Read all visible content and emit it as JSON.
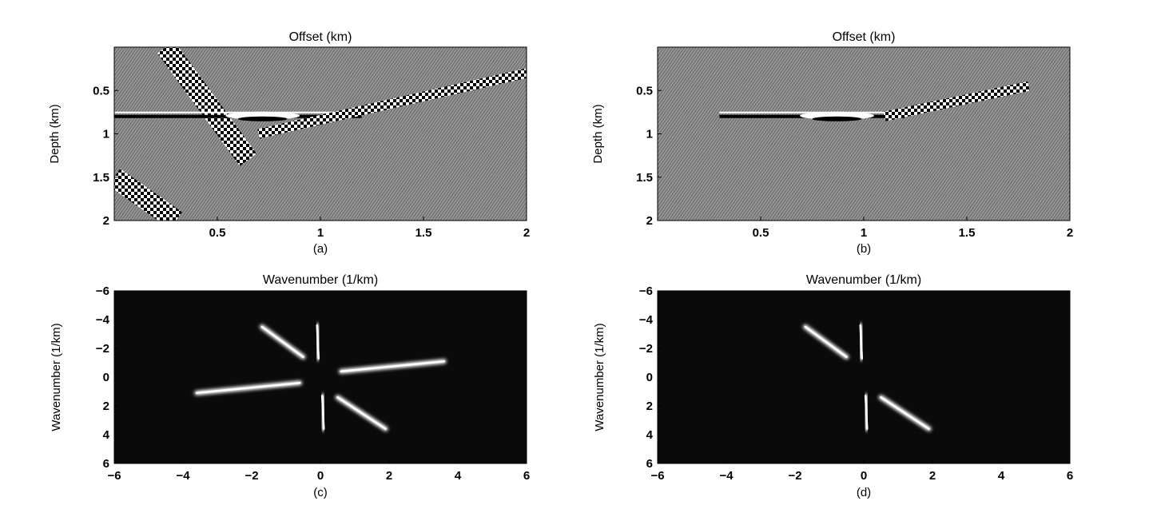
{
  "panels": [
    {
      "id": "a",
      "title": "Offset (km)",
      "ylabel": "Depth (km)",
      "caption": "(a)",
      "xticks": [
        "0.5",
        "1",
        "1.5",
        "2"
      ],
      "yticks": [
        "0.5",
        "1",
        "1.5",
        "2"
      ],
      "xlim": [
        0,
        2
      ],
      "ylim": [
        0,
        2
      ],
      "style": "seismic-gray",
      "background_color": "#8a8a8a",
      "events": [
        {
          "type": "steep-dip",
          "x": [
            0.25,
            0.65
          ],
          "depth": [
            0,
            1.3
          ]
        },
        {
          "type": "horizontal-reflector",
          "x": [
            0,
            1.2
          ],
          "depth": [
            0.8,
            0.8
          ]
        },
        {
          "type": "gentle-dip",
          "x": [
            0.7,
            2.0
          ],
          "depth": [
            1.0,
            0.3
          ]
        },
        {
          "type": "steep-dip",
          "x": [
            0.0,
            0.3
          ],
          "depth": [
            1.5,
            2.0
          ]
        }
      ]
    },
    {
      "id": "b",
      "title": "Offset (km)",
      "ylabel": "Depth (km)",
      "caption": "(b)",
      "xticks": [
        "0.5",
        "1",
        "1.5",
        "2"
      ],
      "yticks": [
        "0.5",
        "1",
        "1.5",
        "2"
      ],
      "xlim": [
        0,
        2
      ],
      "ylim": [
        0,
        2
      ],
      "style": "seismic-gray",
      "background_color": "#8a8a8a",
      "events": [
        {
          "type": "horizontal-reflector",
          "x": [
            0.3,
            1.2
          ],
          "depth": [
            0.8,
            0.8
          ]
        },
        {
          "type": "gentle-dip",
          "x": [
            1.1,
            1.8
          ],
          "depth": [
            0.8,
            0.45
          ]
        }
      ]
    },
    {
      "id": "c",
      "title": "Wavenumber (1/km)",
      "ylabel": "Wavenumber (1/km)",
      "caption": "(c)",
      "xticks": [
        "-6",
        "-4",
        "-2",
        "0",
        "2",
        "4",
        "6"
      ],
      "yticks": [
        "-6",
        "-4",
        "-2",
        "0",
        "2",
        "4",
        "6"
      ],
      "xlim": [
        -6,
        6
      ],
      "ylim": [
        -6,
        6
      ],
      "style": "spectrum",
      "background_color": "#0a0a0a",
      "streaks": [
        {
          "from": [
            -1.7,
            -3.5
          ],
          "to": [
            -0.5,
            -1.4
          ]
        },
        {
          "from": [
            -0.1,
            -3.6
          ],
          "to": [
            -0.05,
            -1.3
          ]
        },
        {
          "from": [
            0.6,
            -0.4
          ],
          "to": [
            3.6,
            -1.1
          ]
        },
        {
          "from": [
            -3.6,
            1.1
          ],
          "to": [
            -0.6,
            0.4
          ]
        },
        {
          "from": [
            0.05,
            1.3
          ],
          "to": [
            0.1,
            3.6
          ]
        },
        {
          "from": [
            0.5,
            1.4
          ],
          "to": [
            1.9,
            3.6
          ]
        }
      ]
    },
    {
      "id": "d",
      "title": "Wavenumber (1/km)",
      "ylabel": "Wavenumber (1/km)",
      "caption": "(d)",
      "xticks": [
        "-6",
        "-4",
        "-2",
        "0",
        "2",
        "4",
        "6"
      ],
      "yticks": [
        "-6",
        "-4",
        "-2",
        "0",
        "2",
        "4",
        "6"
      ],
      "xlim": [
        -6,
        6
      ],
      "ylim": [
        -6,
        6
      ],
      "style": "spectrum",
      "background_color": "#0a0a0a",
      "streaks": [
        {
          "from": [
            -1.7,
            -3.5
          ],
          "to": [
            -0.5,
            -1.4
          ]
        },
        {
          "from": [
            -0.1,
            -3.6
          ],
          "to": [
            -0.05,
            -1.3
          ]
        },
        {
          "from": [
            0.05,
            1.3
          ],
          "to": [
            0.1,
            3.6
          ]
        },
        {
          "from": [
            0.5,
            1.4
          ],
          "to": [
            1.9,
            3.6
          ]
        }
      ]
    }
  ]
}
